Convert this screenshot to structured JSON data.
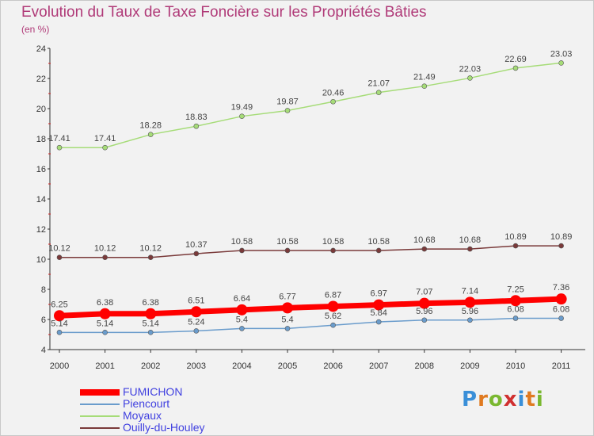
{
  "title": "Evolution du Taux de Taxe Foncière sur les Propriétés Bâties",
  "subtitle": "(en %)",
  "logo": {
    "text": "Proxiti",
    "colors": [
      "#3a8fd8",
      "#e07a20",
      "#7ab830",
      "#d03030"
    ]
  },
  "chart_data": {
    "type": "line",
    "x": [
      "2000",
      "2001",
      "2002",
      "2003",
      "2004",
      "2005",
      "2006",
      "2007",
      "2008",
      "2009",
      "2010",
      "2011"
    ],
    "ylim": [
      4,
      24
    ],
    "yticks": [
      4,
      6,
      8,
      10,
      12,
      14,
      16,
      18,
      20,
      22,
      24
    ],
    "grid": false,
    "legend_position": "bottom-left",
    "series": [
      {
        "name": "FUMICHON",
        "color": "#ff0000",
        "values": [
          6.25,
          6.38,
          6.38,
          6.51,
          6.64,
          6.77,
          6.87,
          6.97,
          7.07,
          7.14,
          7.25,
          7.36
        ],
        "labels": [
          "6.25",
          "6.38",
          "6.38",
          "6.51",
          "6.64",
          "6.77",
          "6.87",
          "6.97",
          "7.07",
          "7.14",
          "7.25",
          "7.36"
        ]
      },
      {
        "name": "Piencourt",
        "color": "#6a9ccc",
        "values": [
          5.14,
          5.14,
          5.14,
          5.24,
          5.4,
          5.4,
          5.62,
          5.84,
          5.96,
          5.96,
          6.08,
          6.08
        ],
        "labels": [
          "5.14",
          "5.14",
          "5.14",
          "5.24",
          "5.4",
          "5.4",
          "5.62",
          "5.84",
          "5.96",
          "5.96",
          "6.08",
          "6.08"
        ]
      },
      {
        "name": "Moyaux",
        "color": "#a6dc78",
        "values": [
          17.41,
          17.41,
          18.28,
          18.83,
          19.49,
          19.87,
          20.46,
          21.07,
          21.49,
          22.03,
          22.69,
          23.03
        ],
        "labels": [
          "17.41",
          "17.41",
          "18.28",
          "18.83",
          "19.49",
          "19.87",
          "20.46",
          "21.07",
          "21.49",
          "22.03",
          "22.69",
          "23.03"
        ]
      },
      {
        "name": "Ouilly-du-Houley",
        "color": "#7a3a3a",
        "values": [
          10.12,
          10.12,
          10.12,
          10.37,
          10.58,
          10.58,
          10.58,
          10.58,
          10.68,
          10.68,
          10.89,
          10.89
        ],
        "labels": [
          "10.12",
          "10.12",
          "10.12",
          "10.37",
          "10.58",
          "10.58",
          "10.58",
          "10.58",
          "10.68",
          "10.68",
          "10.89",
          "10.89"
        ]
      }
    ]
  }
}
